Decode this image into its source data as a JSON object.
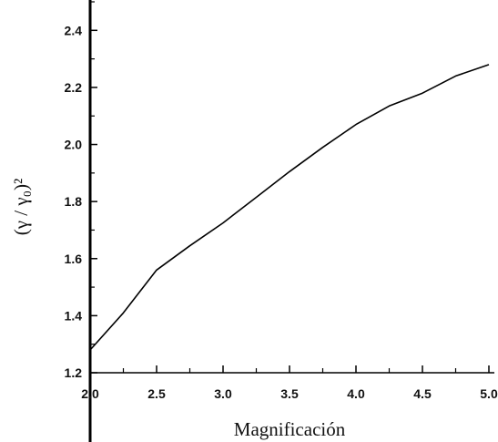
{
  "chart_data": {
    "type": "line",
    "title": "",
    "xlabel": "Magnificación",
    "ylabel": "(γ / γ₀)²",
    "xlim": [
      2.0,
      5.0
    ],
    "ylim": [
      1.2,
      2.5
    ],
    "x_ticks": [
      "2.0",
      "2.5",
      "3.0",
      "3.5",
      "4.0",
      "4.5",
      "5.0"
    ],
    "y_ticks": [
      "1.2",
      "1.4",
      "1.6",
      "1.8",
      "2.0",
      "2.2",
      "2.4"
    ],
    "grid": false,
    "legend": "none",
    "series": [
      {
        "color": "#000000",
        "x": [
          2.0,
          2.25,
          2.5,
          2.75,
          3.0,
          3.25,
          3.5,
          3.75,
          4.0,
          4.25,
          4.5,
          4.75,
          5.0
        ],
        "y": [
          1.28,
          1.41,
          1.56,
          1.645,
          1.725,
          1.815,
          1.905,
          1.99,
          2.07,
          2.135,
          2.18,
          2.24,
          2.28
        ]
      }
    ]
  }
}
